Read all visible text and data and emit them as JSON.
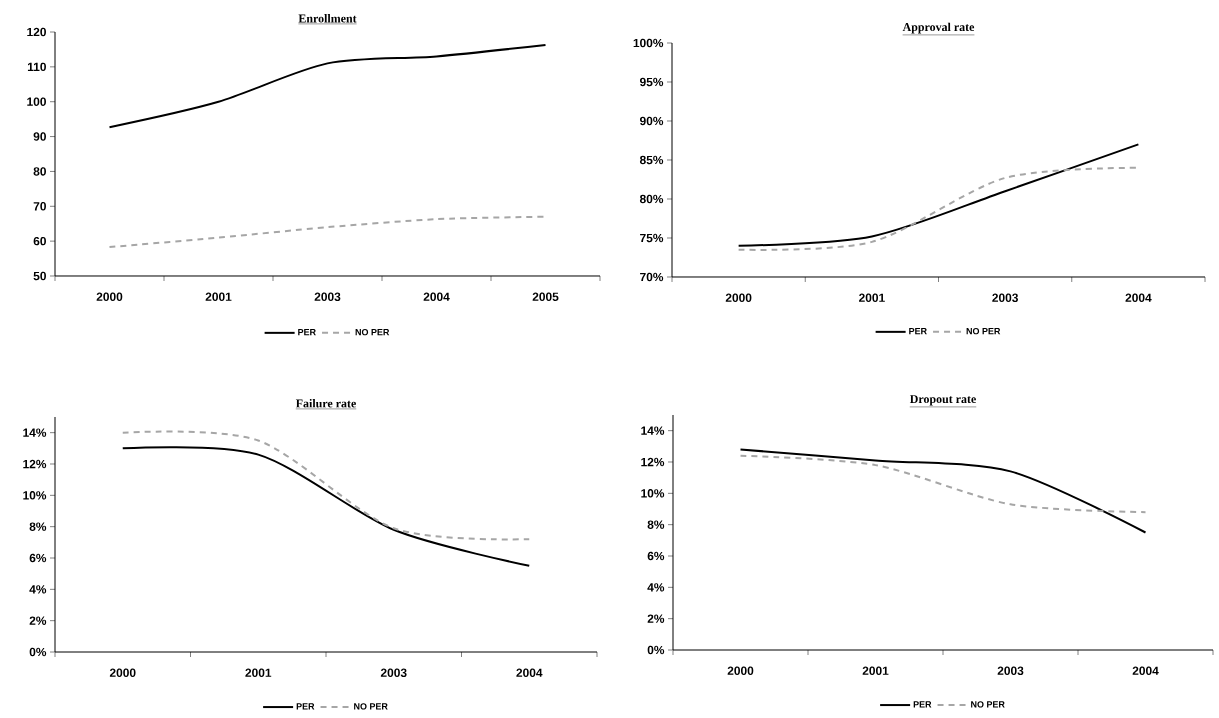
{
  "chart_data": [
    {
      "type": "line",
      "title": "Enrollment",
      "categories": [
        "2000",
        "2001",
        "2003",
        "2004",
        "2005"
      ],
      "ylim": [
        50,
        120
      ],
      "yticks": [
        50,
        60,
        70,
        80,
        90,
        100,
        110,
        120
      ],
      "legend": "bottom",
      "marker": "none",
      "series": [
        {
          "name": "PER",
          "color": "#000000",
          "line_style": "solid",
          "values": [
            92.7,
            100,
            111,
            113,
            116.3
          ]
        },
        {
          "name": "NO PER",
          "color": "#a6a6a6",
          "line_style": "dashed",
          "values": [
            58.3,
            61,
            64,
            66.3,
            67
          ]
        }
      ]
    },
    {
      "type": "line",
      "title": "Approval rate",
      "categories": [
        "2000",
        "2001",
        "2003",
        "2004"
      ],
      "ylim": [
        70,
        100
      ],
      "yticks": [
        {
          "value": 70,
          "label": "70%"
        },
        {
          "value": 75,
          "label": "75%"
        },
        {
          "value": 80,
          "label": "80%"
        },
        {
          "value": 85,
          "label": "85%"
        },
        {
          "value": 90,
          "label": "90%"
        },
        {
          "value": 95,
          "label": "95%"
        },
        {
          "value": 100,
          "label": "100%"
        }
      ],
      "legend": "bottom",
      "marker": "none",
      "series": [
        {
          "name": "PER",
          "color": "#000000",
          "line_style": "solid",
          "values": [
            74,
            75.2,
            81,
            87
          ]
        },
        {
          "name": "NO PER",
          "color": "#a6a6a6",
          "line_style": "dashed",
          "values": [
            73.5,
            74.5,
            82.7,
            84
          ]
        }
      ]
    },
    {
      "type": "line",
      "title": "Failure rate",
      "categories": [
        "2000",
        "2001",
        "2003",
        "2004"
      ],
      "ylim": [
        0,
        15
      ],
      "yticks": [
        {
          "value": 0,
          "label": "0%"
        },
        {
          "value": 2,
          "label": "2%"
        },
        {
          "value": 4,
          "label": "4%"
        },
        {
          "value": 6,
          "label": "6%"
        },
        {
          "value": 8,
          "label": "8%"
        },
        {
          "value": 10,
          "label": "10%"
        },
        {
          "value": 12,
          "label": "12%"
        },
        {
          "value": 14,
          "label": "14%"
        }
      ],
      "legend": "bottom",
      "marker": "none",
      "series": [
        {
          "name": "PER",
          "color": "#000000",
          "line_style": "solid",
          "values": [
            13,
            12.6,
            7.8,
            5.5
          ]
        },
        {
          "name": "NO PER",
          "color": "#a6a6a6",
          "line_style": "dashed",
          "values": [
            14,
            13.5,
            7.9,
            7.2
          ]
        }
      ]
    },
    {
      "type": "line",
      "title": "Dropout rate",
      "categories": [
        "2000",
        "2001",
        "2003",
        "2004"
      ],
      "ylim": [
        0,
        15
      ],
      "yticks": [
        {
          "value": 0,
          "label": "0%"
        },
        {
          "value": 2,
          "label": "2%"
        },
        {
          "value": 4,
          "label": "4%"
        },
        {
          "value": 6,
          "label": "6%"
        },
        {
          "value": 8,
          "label": "8%"
        },
        {
          "value": 10,
          "label": "10%"
        },
        {
          "value": 12,
          "label": "12%"
        },
        {
          "value": 14,
          "label": "14%"
        }
      ],
      "legend": "bottom",
      "marker": "none",
      "series": [
        {
          "name": "PER",
          "color": "#000000",
          "line_style": "solid",
          "values": [
            12.8,
            12.1,
            11.4,
            7.5
          ]
        },
        {
          "name": "NO PER",
          "color": "#a6a6a6",
          "line_style": "dashed",
          "values": [
            12.4,
            11.8,
            9.3,
            8.8
          ]
        }
      ]
    }
  ]
}
